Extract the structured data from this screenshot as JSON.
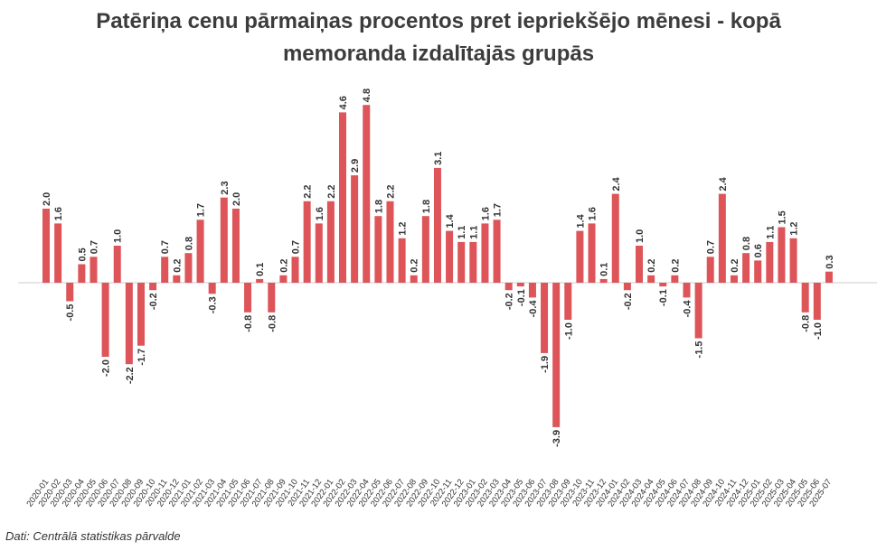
{
  "title": "Patēriņa cenu pārmaiņas procentos pret iepriekšējo mēnesi - kopā memoranda izdalītajās grupās",
  "source": "Dati: Centrālā statistikas pārvalde",
  "colors": {
    "bar": "#dd5459",
    "axis": "#cccccc",
    "text": "#333333",
    "title": "#3c3c3c"
  },
  "chart_data": {
    "type": "bar",
    "title": "Patēriņa cenu pārmaiņas procentos pret iepriekšējo mēnesi - kopā memoranda izdalītajās grupās",
    "xlabel": "",
    "ylabel": "",
    "grid": false,
    "categories": [
      "2020-01",
      "2020-02",
      "2020-03",
      "2020-04",
      "2020-05",
      "2020-06",
      "2020-07",
      "2020-08",
      "2020-09",
      "2020-10",
      "2020-11",
      "2020-12",
      "2021-01",
      "2021-02",
      "2021-03",
      "2021-04",
      "2021-05",
      "2021-06",
      "2021-07",
      "2021-08",
      "2021-09",
      "2021-10",
      "2021-11",
      "2021-12",
      "2022-01",
      "2022-02",
      "2022-03",
      "2022-04",
      "2022-05",
      "2022-06",
      "2022-07",
      "2022-08",
      "2022-09",
      "2022-10",
      "2022-11",
      "2022-12",
      "2023-01",
      "2023-02",
      "2023-03",
      "2023-04",
      "2023-05",
      "2023-06",
      "2023-07",
      "2023-08",
      "2023-09",
      "2023-10",
      "2023-11",
      "2023-12",
      "2024-01",
      "2024-02",
      "2024-03",
      "2024-04",
      "2024-05",
      "2024-06",
      "2024-07",
      "2024-08",
      "2024-09",
      "2024-10",
      "2024-11",
      "2024-12",
      "2025-01",
      "2025-02",
      "2025-03",
      "2025-04",
      "2025-05",
      "2025-06",
      "2025-07"
    ],
    "values": [
      2.0,
      1.6,
      -0.5,
      0.5,
      0.7,
      -2.0,
      1.0,
      -2.2,
      -1.7,
      -0.2,
      0.7,
      0.2,
      0.8,
      1.7,
      -0.3,
      2.3,
      2.0,
      -0.8,
      0.1,
      -0.8,
      0.2,
      0.7,
      2.2,
      1.6,
      2.2,
      4.6,
      2.9,
      4.8,
      1.8,
      2.2,
      1.2,
      0.2,
      1.8,
      3.1,
      1.4,
      1.1,
      1.1,
      1.6,
      1.7,
      -0.2,
      -0.1,
      -0.4,
      -1.9,
      -3.9,
      -1.0,
      1.4,
      1.6,
      0.1,
      2.4,
      -0.2,
      1.0,
      0.2,
      -0.1,
      0.2,
      -0.4,
      -1.5,
      0.7,
      2.4,
      0.2,
      0.8,
      0.6,
      1.1,
      1.5,
      1.2,
      -0.8,
      -1.0,
      0.3
    ],
    "labels": [
      "2.0",
      "1.6",
      "-0.5",
      "0.5",
      "0.7",
      "-2.0",
      "1.0",
      "-2.2",
      "-1.7",
      "-0.2",
      "0.7",
      "0.2",
      "0.8",
      "1.7",
      "-0.3",
      "2.3",
      "2.0",
      "-0.8",
      "0.1",
      "-0.8",
      "0.2",
      "0.7",
      "2.2",
      "1.6",
      "2.2",
      "4.6",
      "2.9",
      "4.8",
      "1.8",
      "2.2",
      "1.2",
      "0.2",
      "1.8",
      "3.1",
      "1.4",
      "1.1",
      "1.1",
      "1.6",
      "1.7",
      "-0.2",
      "-0.1",
      "-0.4",
      "-1.9",
      "-3.9",
      "-1.0",
      "1.4",
      "1.6",
      "0.1",
      "2.4",
      "-0.2",
      "1.0",
      "0.2",
      "-0.1",
      "0.2",
      "-0.4",
      "-1.5",
      "0.7",
      "2.4",
      "0.2",
      "0.8",
      "0.6",
      "1.1",
      "1.5",
      "1.2",
      "-0.8",
      "-1.0",
      "0.3"
    ],
    "ylim": [
      -3.9,
      4.8
    ]
  }
}
